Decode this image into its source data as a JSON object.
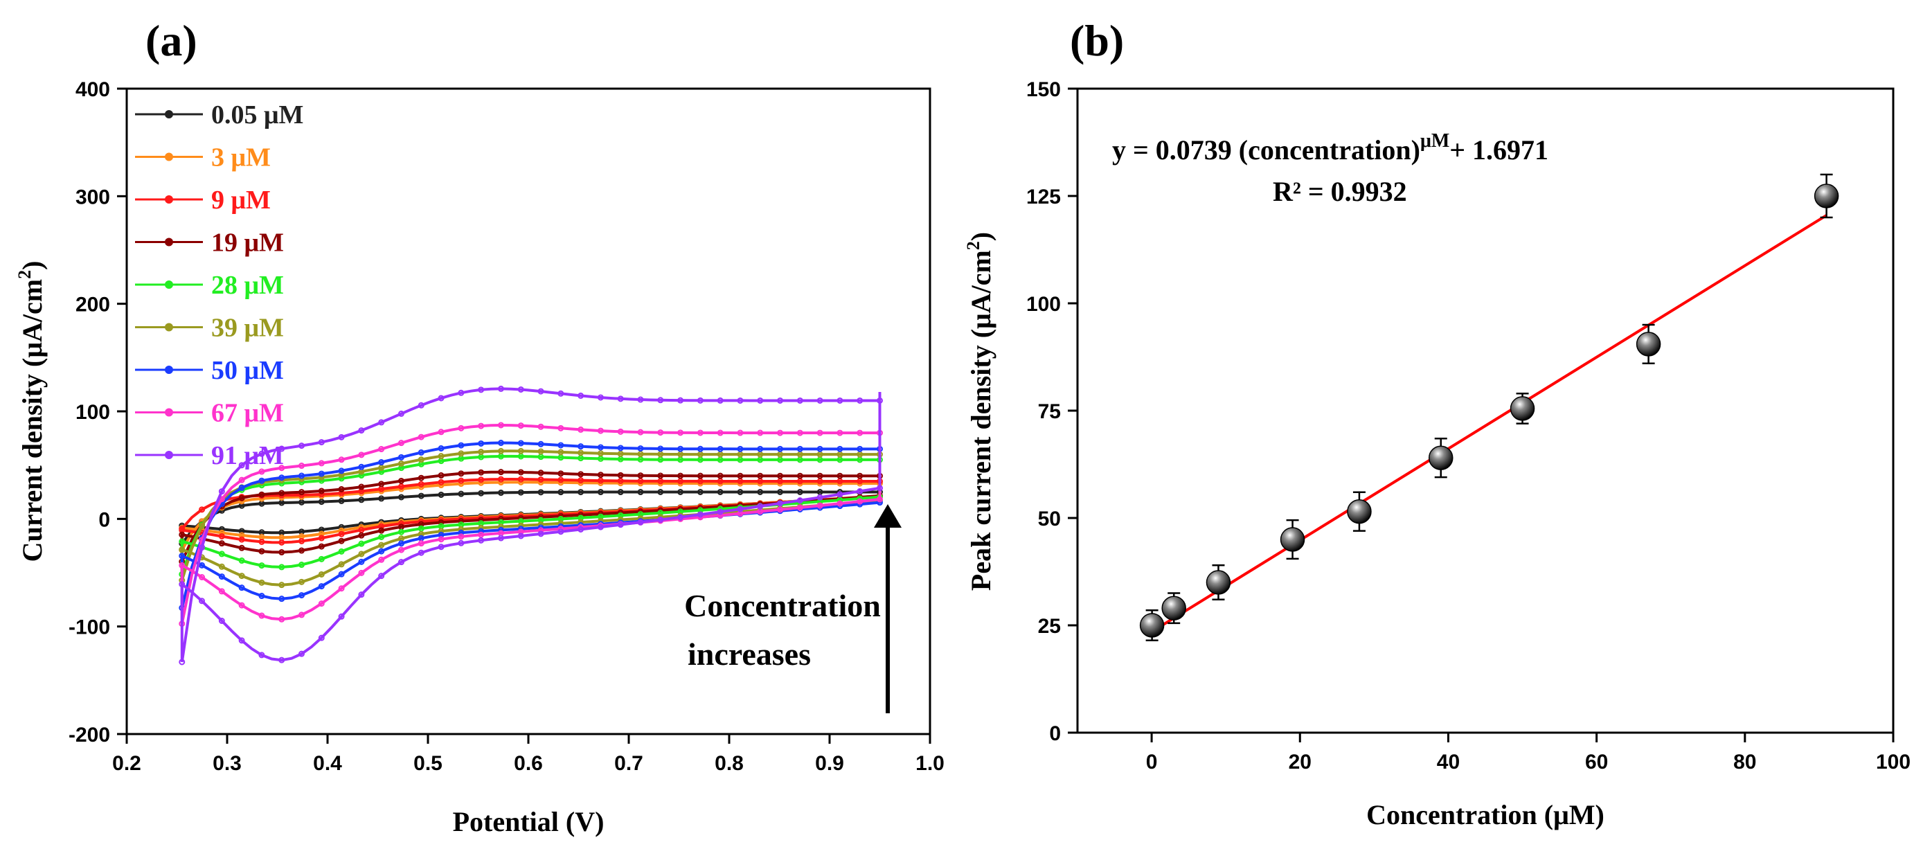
{
  "panels": {
    "a": "(a)",
    "b": "(b)"
  },
  "chart_data": [
    {
      "type": "line",
      "title": "(a)",
      "xlabel": "Potential (V)",
      "ylabel_main": "Current density (μA/cm",
      "ylabel_sup": "2",
      "ylabel_close": ")",
      "xlim": [
        0.2,
        1.0
      ],
      "ylim": [
        -200,
        400
      ],
      "xticks": [
        0.2,
        0.3,
        0.4,
        0.5,
        0.6,
        0.7,
        0.8,
        0.9,
        1.0
      ],
      "xtick_labels": [
        "0.2",
        "0.3",
        "0.4",
        "0.5",
        "0.6",
        "0.7",
        "0.8",
        "0.9",
        "1.0"
      ],
      "yticks": [
        -200,
        -100,
        0,
        100,
        200,
        300,
        400
      ],
      "ytick_labels": [
        "-200",
        "-100",
        "0",
        "100",
        "200",
        "300",
        "400"
      ],
      "annotation_line1": "Concentration",
      "annotation_line2": "increases",
      "series": [
        {
          "name": "0.05 μM",
          "color": "#222222",
          "peak_anodic": 25,
          "baseline_top": 25,
          "peak_cathodic": -15,
          "end_high": 45,
          "start_low": -20
        },
        {
          "name": "3 μM",
          "color": "#ff8c1a",
          "peak_anodic": 35,
          "baseline_top": 33,
          "peak_cathodic": -20,
          "end_high": 48,
          "start_low": -25
        },
        {
          "name": "9 μM",
          "color": "#ff1a1a",
          "peak_anodic": 38,
          "baseline_top": 35,
          "peak_cathodic": -25,
          "end_high": 50,
          "start_low": -5
        },
        {
          "name": "19 μM",
          "color": "#8b0000",
          "peak_anodic": 45,
          "baseline_top": 40,
          "peak_cathodic": -35,
          "end_high": 55,
          "start_low": -35
        },
        {
          "name": "28 μM",
          "color": "#22ee22",
          "peak_anodic": 60,
          "baseline_top": 55,
          "peak_cathodic": -50,
          "end_high": 60,
          "start_low": -45
        },
        {
          "name": "39 μM",
          "color": "#9a9a20",
          "peak_anodic": 65,
          "baseline_top": 60,
          "peak_cathodic": -68,
          "end_high": 62,
          "start_low": -50
        },
        {
          "name": "50 μM",
          "color": "#1a3cff",
          "peak_anodic": 73,
          "baseline_top": 65,
          "peak_cathodic": -82,
          "end_high": 65,
          "start_low": -75
        },
        {
          "name": "67 μM",
          "color": "#ff33cc",
          "peak_anodic": 90,
          "baseline_top": 80,
          "peak_cathodic": -103,
          "end_high": 80,
          "start_low": -88
        },
        {
          "name": "91 μM",
          "color": "#9933ff",
          "peak_anodic": 125,
          "baseline_top": 110,
          "peak_cathodic": -145,
          "end_high": 118,
          "start_low": -120
        }
      ]
    },
    {
      "type": "scatter",
      "title": "(b)",
      "xlabel": "Concentration (μM)",
      "ylabel_main": "Peak current density (μA/cm",
      "ylabel_sup": "2",
      "ylabel_close": ")",
      "xlim": [
        -10,
        100
      ],
      "ylim": [
        0,
        150
      ],
      "xticks": [
        0,
        20,
        40,
        60,
        80,
        100
      ],
      "xtick_labels": [
        "0",
        "20",
        "40",
        "60",
        "80",
        "100"
      ],
      "yticks": [
        0,
        25,
        50,
        75,
        100,
        125,
        150
      ],
      "ytick_labels": [
        "0",
        "25",
        "50",
        "75",
        "100",
        "125",
        "150"
      ],
      "equation_main": "y = 0.0739 (concentration)",
      "equation_sup": "μM",
      "equation_tail": "+ 1.6971",
      "r2": "R² = 0.9932",
      "points": [
        {
          "x": 0.05,
          "y": 25,
          "err": 3.5
        },
        {
          "x": 3,
          "y": 29,
          "err": 3.5
        },
        {
          "x": 9,
          "y": 35,
          "err": 4
        },
        {
          "x": 19,
          "y": 45,
          "err": 4.5
        },
        {
          "x": 28,
          "y": 51.5,
          "err": 4.5
        },
        {
          "x": 39,
          "y": 64,
          "err": 4.5
        },
        {
          "x": 50,
          "y": 75.5,
          "err": 3.5
        },
        {
          "x": 67,
          "y": 90.5,
          "err": 4.5
        },
        {
          "x": 91,
          "y": 125,
          "err": 5
        }
      ],
      "fit": {
        "x": [
          0,
          91
        ],
        "y": [
          23.5,
          120.5
        ],
        "color": "#ff0000"
      }
    }
  ]
}
